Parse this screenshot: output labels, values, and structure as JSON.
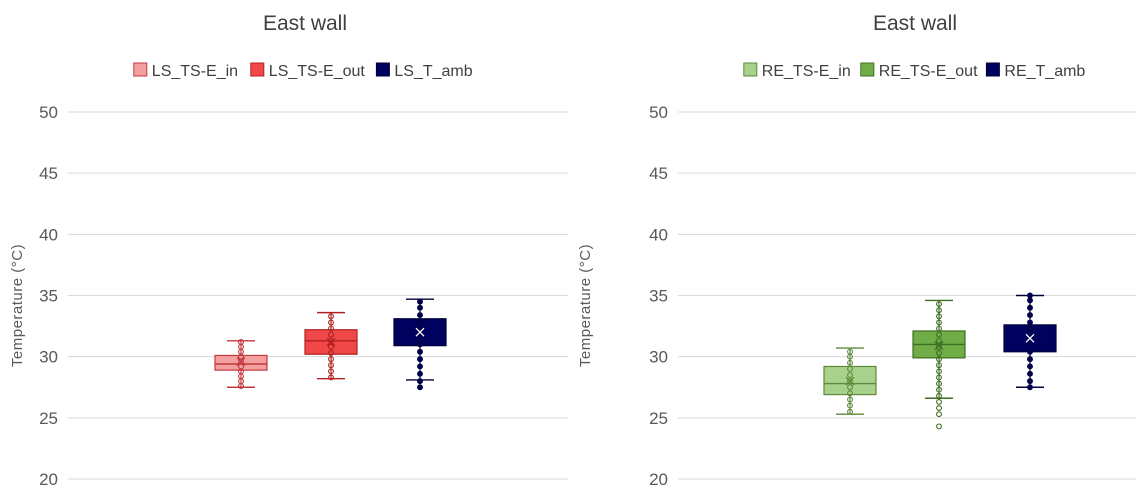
{
  "chart_data": [
    {
      "type": "box",
      "title": "East wall",
      "xlabel": "",
      "ylabel": "Temperature (°C)",
      "ylim": [
        20,
        50
      ],
      "yticks": [
        20,
        25,
        30,
        35,
        40,
        45,
        50
      ],
      "grid": true,
      "legend": "top-center",
      "series": [
        {
          "name": "LS_TS-E_in",
          "color": "#f4a0a0",
          "stroke": "#c0393e",
          "whisker_low": 27.5,
          "q1": 28.9,
          "median": 29.4,
          "q3": 30.1,
          "whisker_high": 31.3,
          "mean": 29.6,
          "points": [
            27.6,
            28.0,
            28.4,
            28.8,
            29.2,
            29.6,
            30.0,
            30.4,
            30.8,
            31.2
          ]
        },
        {
          "name": "LS_TS-E_out",
          "color": "#f04848",
          "stroke": "#b02020",
          "whisker_low": 28.2,
          "q1": 30.2,
          "median": 31.3,
          "q3": 32.2,
          "whisker_high": 33.6,
          "mean": 31.2,
          "points": [
            28.3,
            28.8,
            29.3,
            29.8,
            30.3,
            30.8,
            31.3,
            31.8,
            32.3,
            32.8,
            33.3
          ]
        },
        {
          "name": "LS_T_amb",
          "color": "#00005e",
          "stroke": "#00003a",
          "whisker_low": 28.1,
          "q1": 30.9,
          "median": 31.2,
          "q3": 33.1,
          "whisker_high": 34.7,
          "mean": 32.0,
          "points": [
            27.5,
            28.0,
            28.6,
            29.2,
            29.8,
            30.4,
            31.0,
            31.6,
            32.2,
            32.8,
            33.4,
            34.0,
            34.5
          ]
        }
      ]
    },
    {
      "type": "box",
      "title": "East wall",
      "xlabel": "",
      "ylabel": "Temperature (°C)",
      "ylim": [
        20,
        50
      ],
      "yticks": [
        20,
        25,
        30,
        35,
        40,
        45,
        50
      ],
      "grid": true,
      "legend": "top-center",
      "series": [
        {
          "name": "RE_TS-E_in",
          "color": "#a9d18e",
          "stroke": "#5e8a3a",
          "whisker_low": 25.3,
          "q1": 26.9,
          "median": 27.8,
          "q3": 29.2,
          "whisker_high": 30.7,
          "mean": 28.0,
          "points": [
            25.5,
            26.0,
            26.5,
            27.0,
            27.5,
            28.0,
            28.5,
            29.0,
            29.5,
            30.0,
            30.4
          ]
        },
        {
          "name": "RE_TS-E_out",
          "color": "#70ad47",
          "stroke": "#3f6e22",
          "whisker_low": 26.6,
          "q1": 29.9,
          "median": 31.0,
          "q3": 32.1,
          "whisker_high": 34.6,
          "mean": 30.9,
          "points": [
            24.3,
            25.3,
            25.8,
            26.3,
            26.8,
            27.3,
            27.8,
            28.3,
            28.8,
            29.3,
            29.8,
            30.3,
            30.8,
            31.3,
            31.8,
            32.3,
            32.8,
            33.3,
            33.8,
            34.3
          ]
        },
        {
          "name": "RE_T_amb",
          "color": "#00005e",
          "stroke": "#00003a",
          "whisker_low": 27.5,
          "q1": 30.4,
          "median": 30.6,
          "q3": 32.6,
          "whisker_high": 35.0,
          "mean": 31.5,
          "points": [
            27.5,
            28.0,
            28.6,
            29.2,
            29.8,
            30.4,
            31.0,
            31.6,
            32.2,
            32.8,
            33.4,
            34.0,
            34.6,
            35.0
          ]
        }
      ]
    }
  ]
}
